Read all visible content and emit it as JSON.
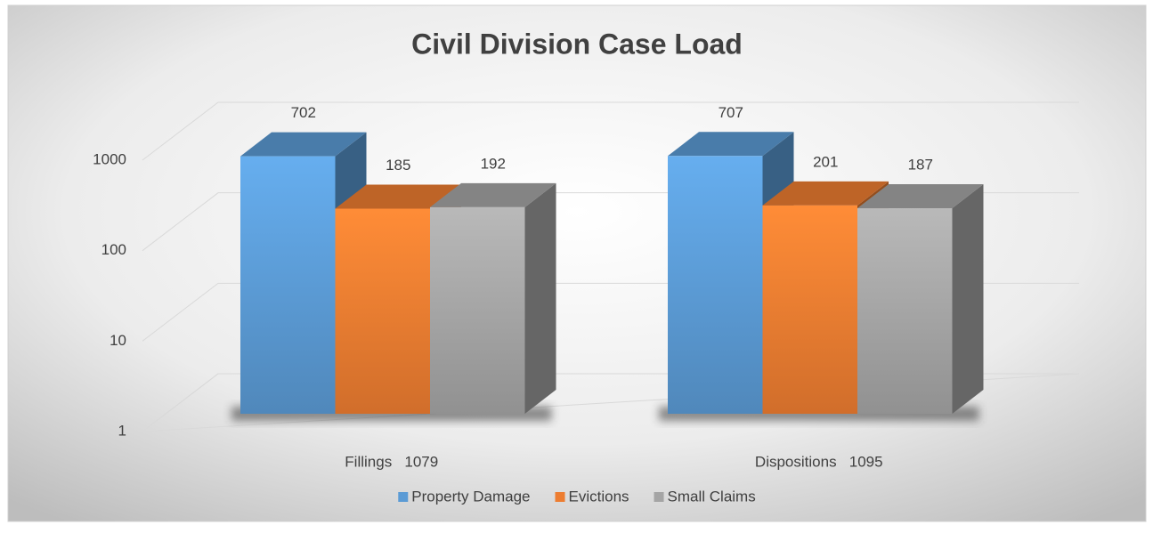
{
  "chart_data": {
    "type": "bar3d",
    "title": "Civil Division Case Load",
    "categories": [
      "Fillings   1079",
      "Dispositions   1095"
    ],
    "series": [
      {
        "name": "Property Damage",
        "color": "#5b9bd5",
        "values": [
          702,
          707
        ]
      },
      {
        "name": "Evictions",
        "color": "#ed7d31",
        "values": [
          185,
          201
        ]
      },
      {
        "name": "Small Claims",
        "color": "#a5a5a5",
        "values": [
          192,
          187
        ]
      }
    ],
    "ylim": [
      1,
      1000
    ],
    "yticks": [
      1,
      10,
      100,
      1000
    ],
    "log_scale": true,
    "grid": true,
    "legend": "bottom"
  }
}
